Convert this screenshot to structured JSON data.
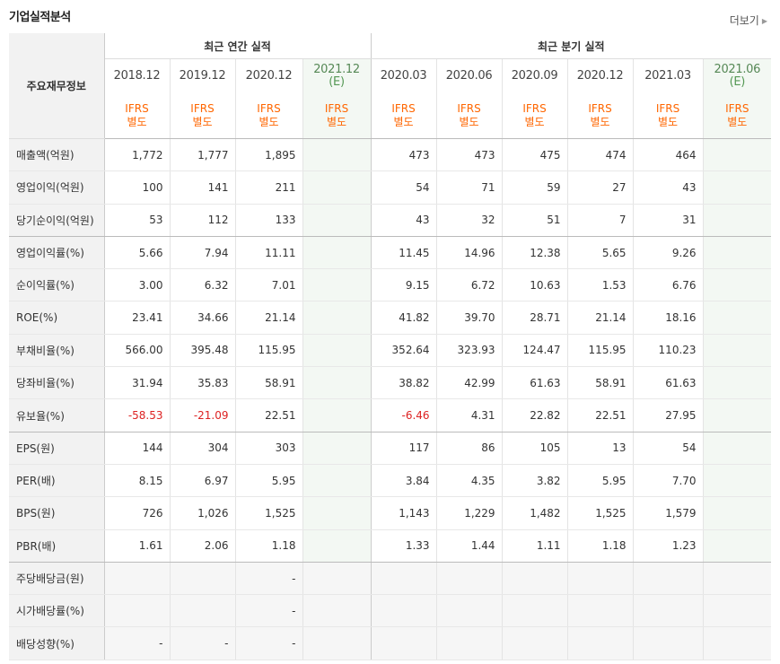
{
  "section_title": "기업실적분석",
  "more_label": "더보기",
  "header": {
    "label_col": "주요재무정보",
    "annual_group": "최근 연간 실적",
    "quarter_group": "최근 분기 실적",
    "annual_periods": [
      {
        "date": "2018.12",
        "est": "",
        "ifrs": "IFRS",
        "basis": "별도"
      },
      {
        "date": "2019.12",
        "est": "",
        "ifrs": "IFRS",
        "basis": "별도"
      },
      {
        "date": "2020.12",
        "est": "",
        "ifrs": "IFRS",
        "basis": "별도"
      },
      {
        "date": "2021.12",
        "est": "(E)",
        "ifrs": "IFRS",
        "basis": "별도"
      }
    ],
    "quarter_periods": [
      {
        "date": "2020.03",
        "est": "",
        "ifrs": "IFRS",
        "basis": "별도"
      },
      {
        "date": "2020.06",
        "est": "",
        "ifrs": "IFRS",
        "basis": "별도"
      },
      {
        "date": "2020.09",
        "est": "",
        "ifrs": "IFRS",
        "basis": "별도"
      },
      {
        "date": "2020.12",
        "est": "",
        "ifrs": "IFRS",
        "basis": "별도"
      },
      {
        "date": "2021.03",
        "est": "",
        "ifrs": "IFRS",
        "basis": "별도"
      },
      {
        "date": "2021.06",
        "est": "(E)",
        "ifrs": "IFRS",
        "basis": "별도"
      }
    ]
  },
  "rows": [
    {
      "label": "매출액(억원)",
      "values": [
        "1,772",
        "1,777",
        "1,895",
        "",
        "473",
        "473",
        "475",
        "474",
        "464",
        ""
      ]
    },
    {
      "label": "영업이익(억원)",
      "values": [
        "100",
        "141",
        "211",
        "",
        "54",
        "71",
        "59",
        "27",
        "43",
        ""
      ]
    },
    {
      "label": "당기순이익(억원)",
      "values": [
        "53",
        "112",
        "133",
        "",
        "43",
        "32",
        "51",
        "7",
        "31",
        ""
      ]
    },
    {
      "label": "영업이익률(%)",
      "values": [
        "5.66",
        "7.94",
        "11.11",
        "",
        "11.45",
        "14.96",
        "12.38",
        "5.65",
        "9.26",
        ""
      ]
    },
    {
      "label": "순이익률(%)",
      "values": [
        "3.00",
        "6.32",
        "7.01",
        "",
        "9.15",
        "6.72",
        "10.63",
        "1.53",
        "6.76",
        ""
      ]
    },
    {
      "label": "ROE(%)",
      "values": [
        "23.41",
        "34.66",
        "21.14",
        "",
        "41.82",
        "39.70",
        "28.71",
        "21.14",
        "18.16",
        ""
      ]
    },
    {
      "label": "부채비율(%)",
      "values": [
        "566.00",
        "395.48",
        "115.95",
        "",
        "352.64",
        "323.93",
        "124.47",
        "115.95",
        "110.23",
        ""
      ]
    },
    {
      "label": "당좌비율(%)",
      "values": [
        "31.94",
        "35.83",
        "58.91",
        "",
        "38.82",
        "42.99",
        "61.63",
        "58.91",
        "61.63",
        ""
      ]
    },
    {
      "label": "유보율(%)",
      "values": [
        "-58.53",
        "-21.09",
        "22.51",
        "",
        "-6.46",
        "4.31",
        "22.82",
        "22.51",
        "27.95",
        ""
      ]
    },
    {
      "label": "EPS(원)",
      "values": [
        "144",
        "304",
        "303",
        "",
        "117",
        "86",
        "105",
        "13",
        "54",
        ""
      ]
    },
    {
      "label": "PER(배)",
      "values": [
        "8.15",
        "6.97",
        "5.95",
        "",
        "3.84",
        "4.35",
        "3.82",
        "5.95",
        "7.70",
        ""
      ]
    },
    {
      "label": "BPS(원)",
      "values": [
        "726",
        "1,026",
        "1,525",
        "",
        "1,143",
        "1,229",
        "1,482",
        "1,525",
        "1,579",
        ""
      ]
    },
    {
      "label": "PBR(배)",
      "values": [
        "1.61",
        "2.06",
        "1.18",
        "",
        "1.33",
        "1.44",
        "1.11",
        "1.18",
        "1.23",
        ""
      ]
    },
    {
      "label": "주당배당금(원)",
      "values": [
        "",
        "",
        "-",
        "",
        "",
        "",
        "",
        "",
        "",
        ""
      ]
    },
    {
      "label": "시가배당률(%)",
      "values": [
        "",
        "",
        "-",
        "",
        "",
        "",
        "",
        "",
        "",
        ""
      ]
    },
    {
      "label": "배당성향(%)",
      "values": [
        "-",
        "-",
        "-",
        "",
        "",
        "",
        "",
        "",
        "",
        ""
      ]
    }
  ],
  "colors": {
    "ifrs": "#ff6600",
    "negative": "#dd2222",
    "estimate_bg": "#f3f8f3"
  }
}
